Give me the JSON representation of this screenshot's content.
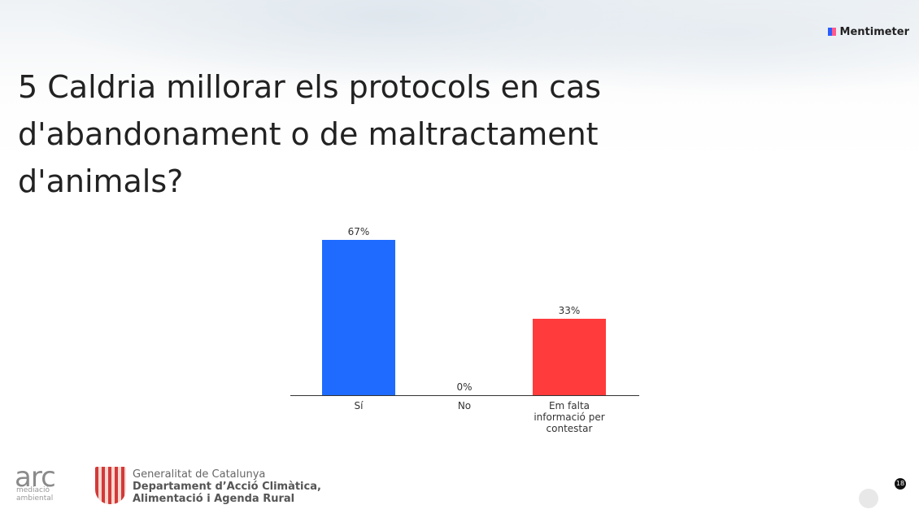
{
  "brand": "Mentimeter",
  "chart_data": {
    "type": "bar",
    "title": "5 Caldria millorar els protocols en cas d'abandonament o de maltractament d'animals?",
    "categories": [
      "Sí",
      "No",
      "Em falta informació per contestar"
    ],
    "values": [
      67,
      0,
      33
    ],
    "value_labels": [
      "67%",
      "0%",
      "33%"
    ],
    "colors": [
      "#1f6bff",
      "#ff3b3b",
      "#ff3b3b"
    ]
  },
  "footer": {
    "logo": "arc",
    "logo_sub": "mediació ambiental",
    "org": "Generalitat de Catalunya",
    "dept_line1": "Departament d’Acció Climàtica,",
    "dept_line2": "Alimentació i Agenda Rural"
  },
  "participants": 18
}
